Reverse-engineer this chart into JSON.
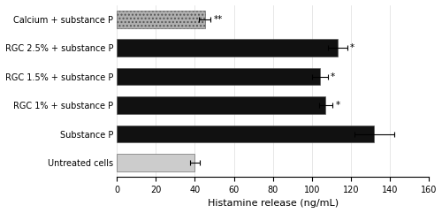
{
  "categories": [
    "Calcium + substance P",
    "RGC 2.5% + substance P",
    "RGC 1.5% + substance P",
    "RGC 1% + substance P",
    "Substance P",
    "Untreated cells"
  ],
  "values": [
    45,
    113,
    104,
    107,
    132,
    40
  ],
  "errors": [
    3,
    5,
    4,
    3.5,
    10,
    2.5
  ],
  "colors": [
    "#b0b0b0",
    "#111111",
    "#111111",
    "#111111",
    "#111111",
    "#cccccc"
  ],
  "hatches": [
    "....",
    "",
    "",
    "",
    "",
    ""
  ],
  "significance": [
    "**",
    "*",
    "*",
    "*",
    "",
    ""
  ],
  "xlabel": "Histamine release (ng/mL)",
  "xlim": [
    0,
    160
  ],
  "xticks": [
    0,
    20,
    40,
    60,
    80,
    100,
    120,
    140,
    160
  ],
  "bar_height": 0.6,
  "figsize": [
    5.0,
    2.41
  ],
  "dpi": 100
}
